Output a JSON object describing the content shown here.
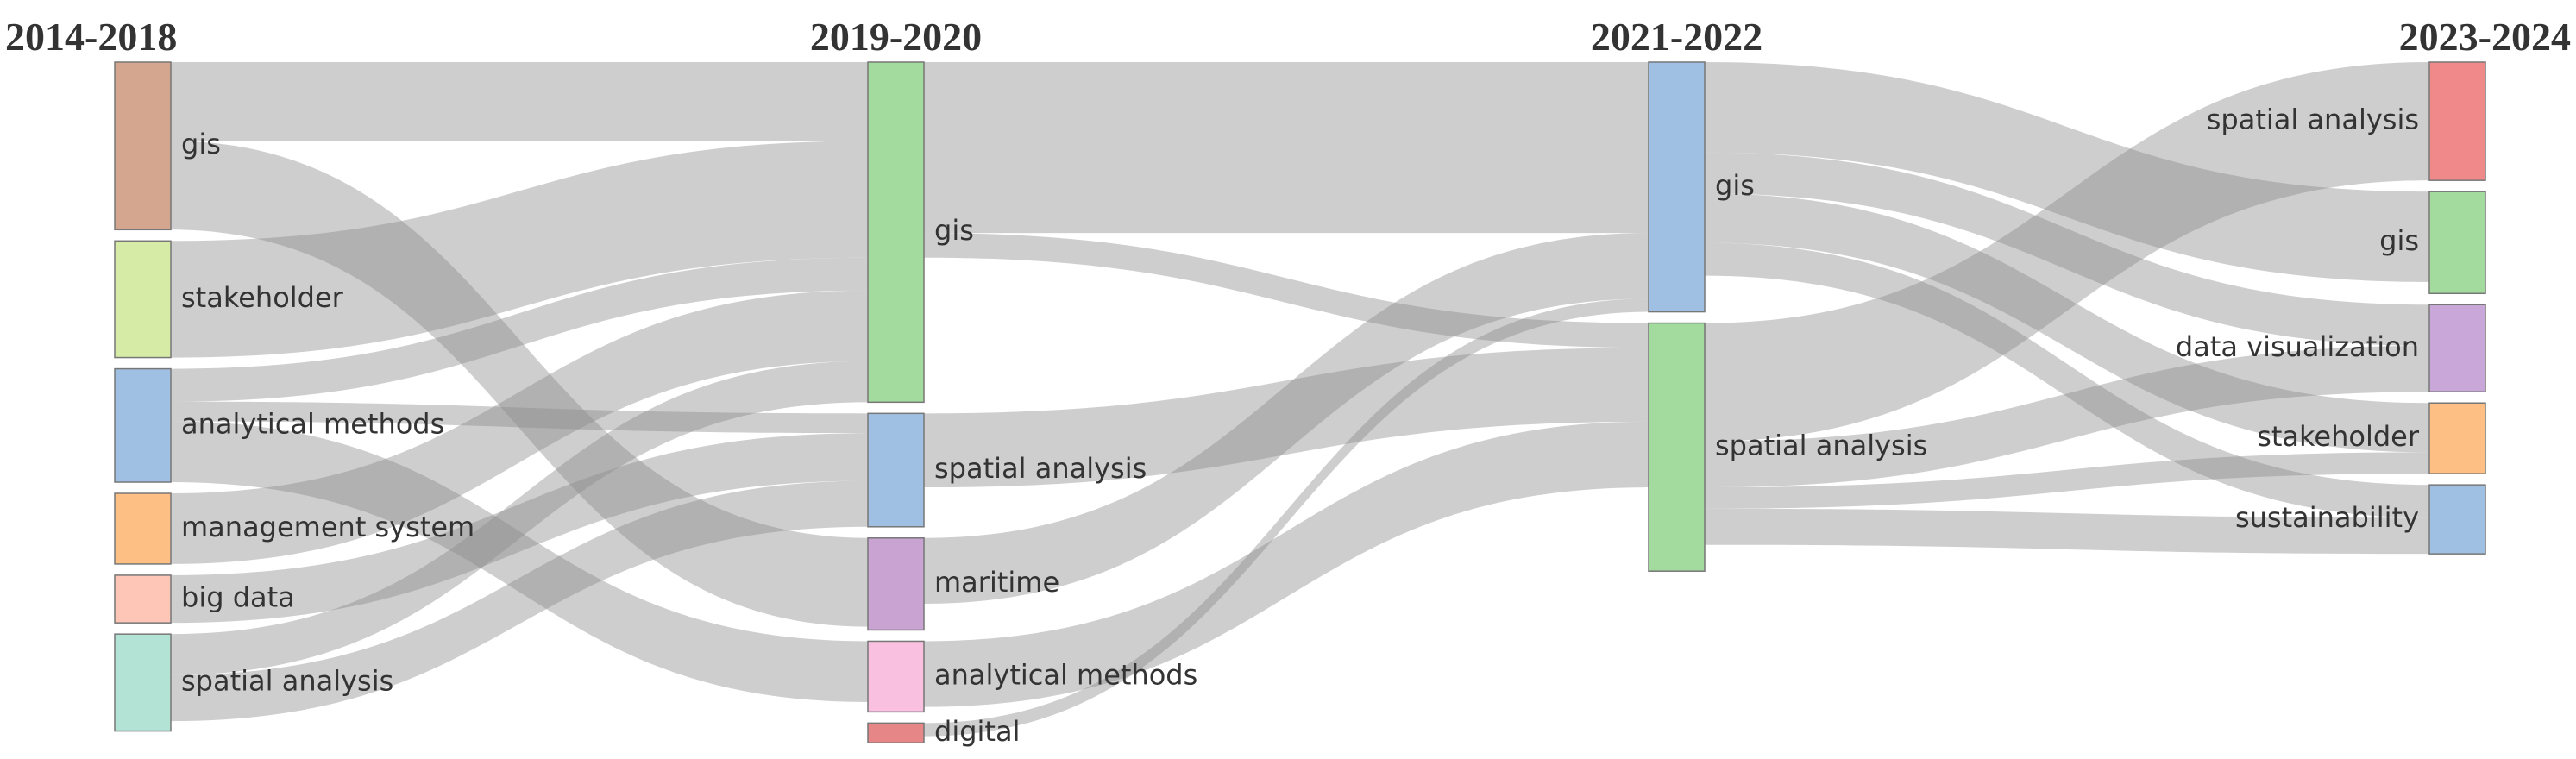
{
  "chart_data": {
    "type": "sankey",
    "columns": [
      {
        "title": "2014-2018",
        "nodes": [
          {
            "name": "gis",
            "color": "#d4a58f",
            "value": 102,
            "links": [
              {
                "target": 0,
                "value": 48
              },
              {
                "target": 2,
                "value": 54
              }
            ]
          },
          {
            "name": "stakeholder",
            "color": "#d6eca6",
            "value": 71,
            "links": [
              {
                "target": 0,
                "value": 71
              }
            ]
          },
          {
            "name": "analytical methods",
            "color": "#9fc0e2",
            "value": 69,
            "links": [
              {
                "target": 0,
                "value": 20
              },
              {
                "target": 1,
                "value": 12
              },
              {
                "target": 3,
                "value": 37
              }
            ]
          },
          {
            "name": "management system",
            "color": "#fdbf84",
            "value": 43,
            "links": [
              {
                "target": 0,
                "value": 43
              }
            ]
          },
          {
            "name": "big data",
            "color": "#fdc6b6",
            "value": 29,
            "links": [
              {
                "target": 1,
                "value": 29
              }
            ]
          },
          {
            "name": "spatial analysis",
            "color": "#b3e3d4",
            "value": 59,
            "links": [
              {
                "target": 0,
                "value": 25
              },
              {
                "target": 1,
                "value": 28
              }
            ]
          }
        ]
      },
      {
        "title": "2019-2020",
        "nodes": [
          {
            "name": "gis",
            "color": "#a3da9d",
            "value": 207,
            "links": [
              {
                "target": 0,
                "value": 104
              },
              {
                "target": 1,
                "value": 15
              }
            ]
          },
          {
            "name": "spatial analysis",
            "color": "#9fc0e2",
            "value": 69,
            "links": [
              {
                "target": 1,
                "value": 45
              }
            ]
          },
          {
            "name": "maritime",
            "color": "#c9a3d2",
            "value": 56,
            "links": [
              {
                "target": 0,
                "value": 40
              }
            ]
          },
          {
            "name": "analytical methods",
            "color": "#f9c0e0",
            "value": 43,
            "links": [
              {
                "target": 1,
                "value": 40
              }
            ]
          },
          {
            "name": "digital",
            "color": "#e78686",
            "value": 12,
            "links": [
              {
                "target": 0,
                "value": 8
              }
            ]
          }
        ]
      },
      {
        "title": "2021-2022",
        "nodes": [
          {
            "name": "gis",
            "color": "#9fc0e2",
            "value": 152,
            "links": [
              {
                "target": 1,
                "value": 55
              },
              {
                "target": 2,
                "value": 25
              },
              {
                "target": 3,
                "value": 30
              },
              {
                "target": 4,
                "value": 20
              }
            ]
          },
          {
            "name": "spatial analysis",
            "color": "#a3da9d",
            "value": 151,
            "links": [
              {
                "target": 0,
                "value": 72
              },
              {
                "target": 2,
                "value": 28
              },
              {
                "target": 3,
                "value": 13
              },
              {
                "target": 4,
                "value": 22
              }
            ]
          }
        ]
      },
      {
        "title": "2023-2024",
        "nodes": [
          {
            "name": "spatial analysis",
            "color": "#f08a8a",
            "value": 72,
            "links": []
          },
          {
            "name": "gis",
            "color": "#a3da9d",
            "value": 62,
            "links": []
          },
          {
            "name": "data visualization",
            "color": "#c9a8d9",
            "value": 53,
            "links": []
          },
          {
            "name": "stakeholder",
            "color": "#fdbf84",
            "value": 43,
            "links": []
          },
          {
            "name": "sustainability",
            "color": "#9fc0e2",
            "value": 42,
            "links": []
          }
        ]
      }
    ]
  }
}
